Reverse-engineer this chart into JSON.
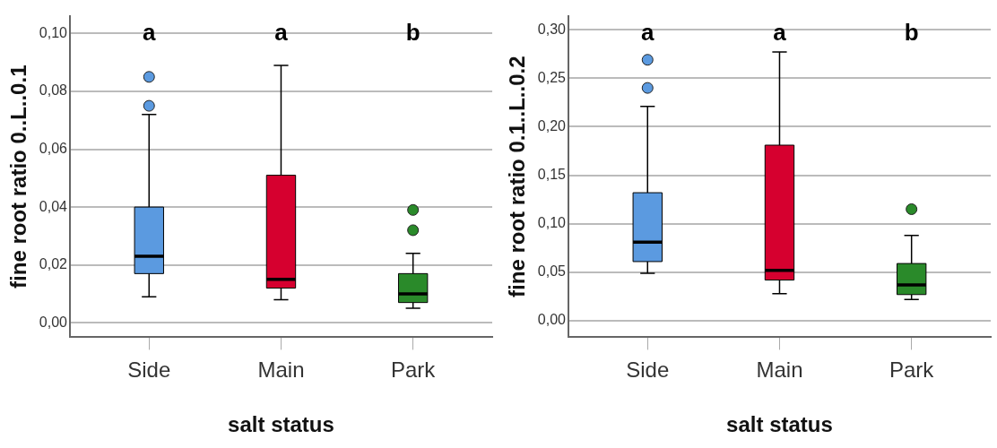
{
  "chart_data": [
    {
      "type": "box",
      "categories": [
        "Side",
        "Main",
        "Park"
      ],
      "xlabel": "salt status",
      "ylabel": "fine root ratio 0..L..0.1",
      "colors": [
        "#5b9ae0",
        "#d6002f",
        "#2a8a2a"
      ],
      "boxes": [
        {
          "low": 0.009,
          "q1": 0.017,
          "median": 0.023,
          "q3": 0.04,
          "high": 0.072,
          "outliers": [
            0.075,
            0.085
          ]
        },
        {
          "low": 0.008,
          "q1": 0.012,
          "median": 0.015,
          "q3": 0.051,
          "high": 0.089
        },
        {
          "low": 0.005,
          "q1": 0.007,
          "median": 0.01,
          "q3": 0.017,
          "high": 0.024,
          "outliers": [
            0.032,
            0.039
          ]
        }
      ],
      "ylim": [
        -0.005,
        0.106
      ],
      "yticks": [
        {
          "value": 0,
          "label": "0,00"
        },
        {
          "value": 0.02,
          "label": "0,02"
        },
        {
          "value": 0.04,
          "label": "0,04"
        },
        {
          "value": 0.06,
          "label": "0,06"
        },
        {
          "value": 0.08,
          "label": "0,08"
        },
        {
          "value": 0.1,
          "label": "0,10"
        }
      ],
      "grid": "y",
      "annotations": [
        "a",
        "a",
        "b"
      ]
    },
    {
      "type": "box",
      "categories": [
        "Side",
        "Main",
        "Park"
      ],
      "xlabel": "salt status",
      "ylabel": "fine root ratio 0.1..L..0.2",
      "colors": [
        "#5b9ae0",
        "#d6002f",
        "#2a8a2a"
      ],
      "boxes": [
        {
          "low": 0.049,
          "q1": 0.061,
          "median": 0.081,
          "q3": 0.132,
          "high": 0.221,
          "outliers": [
            0.24,
            0.269
          ]
        },
        {
          "low": 0.028,
          "q1": 0.042,
          "median": 0.052,
          "q3": 0.181,
          "high": 0.277
        },
        {
          "low": 0.022,
          "q1": 0.027,
          "median": 0.037,
          "q3": 0.059,
          "high": 0.088,
          "outliers": [
            0.115
          ]
        }
      ],
      "ylim": [
        -0.017,
        0.314
      ],
      "yticks": [
        {
          "value": 0,
          "label": "0,00"
        },
        {
          "value": 0.05,
          "label": "0,05"
        },
        {
          "value": 0.1,
          "label": "0,10"
        },
        {
          "value": 0.15,
          "label": "0,15"
        },
        {
          "value": 0.2,
          "label": "0,20"
        },
        {
          "value": 0.25,
          "label": "0,25"
        },
        {
          "value": 0.3,
          "label": "0,30"
        }
      ],
      "grid": "y",
      "annotations": [
        "a",
        "a",
        "b"
      ]
    }
  ]
}
